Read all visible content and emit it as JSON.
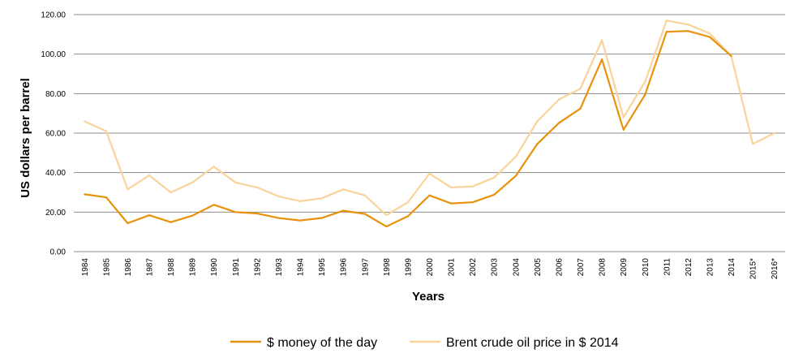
{
  "chart_data": {
    "type": "line",
    "xlabel": "Years",
    "ylabel": "US dollars per barrel",
    "ylim": [
      0,
      120
    ],
    "yticks": [
      "0.00",
      "20.00",
      "40.00",
      "60.00",
      "80.00",
      "100.00",
      "120.00"
    ],
    "grid": true,
    "legend_position": "bottom",
    "categories": [
      "1984",
      "1985",
      "1986",
      "1987",
      "1988",
      "1989",
      "1990",
      "1991",
      "1992",
      "1993",
      "1994",
      "1995",
      "1996",
      "1997",
      "1998",
      "1999",
      "2000",
      "2001",
      "2002",
      "2003",
      "2004",
      "2005",
      "2006",
      "2007",
      "2008",
      "2009",
      "2010",
      "2011",
      "2012",
      "2013",
      "2014",
      "2015*",
      "2016*"
    ],
    "series": [
      {
        "name": "$ money of the day",
        "color": "#e8920c",
        "values": [
          29.0,
          27.5,
          14.4,
          18.4,
          14.9,
          18.2,
          23.7,
          20.0,
          19.3,
          17.0,
          15.8,
          17.0,
          20.7,
          19.1,
          12.7,
          17.9,
          28.5,
          24.4,
          25.0,
          28.8,
          38.3,
          54.5,
          65.1,
          72.4,
          97.3,
          61.7,
          79.5,
          111.3,
          111.7,
          108.7,
          99.0,
          null,
          null
        ]
      },
      {
        "name": "Brent crude oil price in $ 2014",
        "color": "#fad39a",
        "values": [
          65.9,
          61.0,
          31.5,
          38.6,
          30.0,
          35.0,
          43.0,
          35.0,
          32.5,
          28.0,
          25.5,
          27.0,
          31.5,
          28.5,
          18.5,
          25.0,
          39.5,
          32.5,
          33.0,
          37.5,
          48.0,
          66.0,
          77.0,
          82.5,
          107.0,
          68.0,
          86.0,
          117.0,
          115.0,
          110.5,
          99.0,
          54.5,
          60.0
        ]
      }
    ]
  }
}
